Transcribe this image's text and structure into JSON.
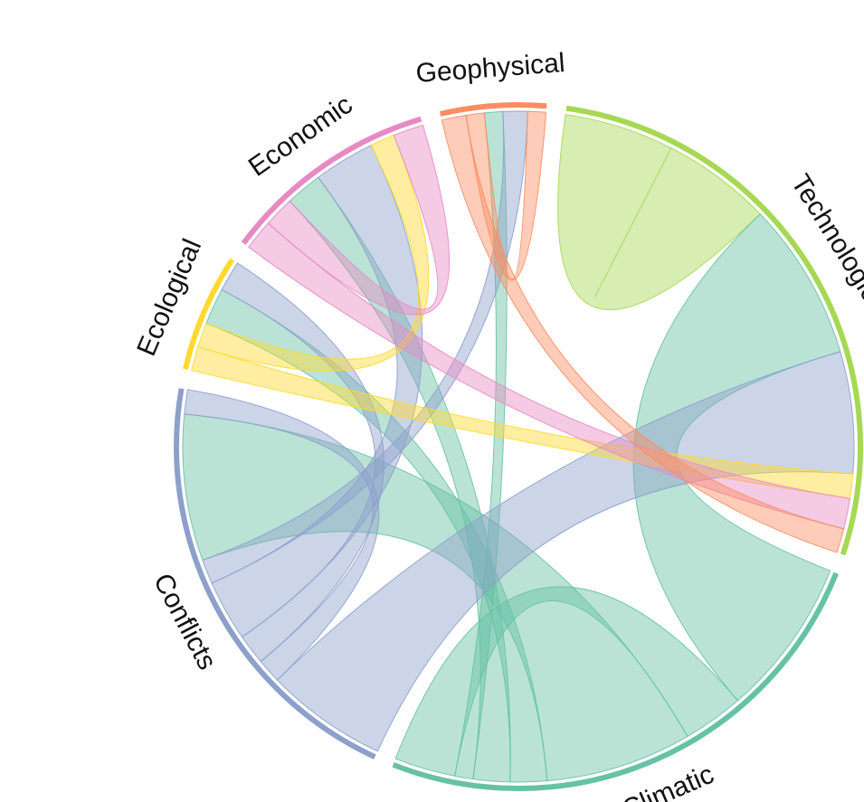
{
  "chart_data": {
    "type": "chord",
    "sectors": [
      {
        "name": "Technological",
        "color": "#a6d854"
      },
      {
        "name": "Climatic",
        "color": "#66c2a5"
      },
      {
        "name": "Conflicts",
        "color": "#8da0cb"
      },
      {
        "name": "Ecological",
        "color": "#ffd92f"
      },
      {
        "name": "Economic",
        "color": "#e78ac3"
      },
      {
        "name": "Geophysical",
        "color": "#fc8d62"
      }
    ],
    "links": [
      {
        "source": "Technological",
        "target": "Technological",
        "value": 9,
        "color": "#a6d854"
      },
      {
        "source": "Climatic",
        "target": "Technological",
        "value": 13,
        "color": "#66c2a5"
      },
      {
        "source": "Climatic",
        "target": "Climatic",
        "value": 5,
        "color": "#66c2a5"
      },
      {
        "source": "Climatic",
        "target": "Conflicts",
        "value": 12,
        "color": "#66c2a5"
      },
      {
        "source": "Climatic",
        "target": "Ecological",
        "value": 3,
        "color": "#66c2a5"
      },
      {
        "source": "Climatic",
        "target": "Economic",
        "value": 3,
        "color": "#66c2a5"
      },
      {
        "source": "Climatic",
        "target": "Geophysical",
        "value": 1.5,
        "color": "#66c2a5"
      },
      {
        "source": "Conflicts",
        "target": "Technological",
        "value": 10,
        "color": "#8da0cb"
      },
      {
        "source": "Conflicts",
        "target": "Conflicts",
        "value": 2,
        "color": "#8da0cb"
      },
      {
        "source": "Conflicts",
        "target": "Ecological",
        "value": 2.5,
        "color": "#8da0cb"
      },
      {
        "source": "Conflicts",
        "target": "Economic",
        "value": 5,
        "color": "#8da0cb"
      },
      {
        "source": "Conflicts",
        "target": "Geophysical",
        "value": 2,
        "color": "#8da0cb"
      },
      {
        "source": "Ecological",
        "target": "Technological",
        "value": 2,
        "color": "#ffd92f"
      },
      {
        "source": "Ecological",
        "target": "Economic",
        "value": 2,
        "color": "#ffd92f"
      },
      {
        "source": "Economic",
        "target": "Technological",
        "value": 2.5,
        "color": "#e78ac3"
      },
      {
        "source": "Economic",
        "target": "Economic",
        "value": 2.5,
        "color": "#e78ac3"
      },
      {
        "source": "Geophysical",
        "target": "Technological",
        "value": 2,
        "color": "#fc8d62"
      },
      {
        "source": "Geophysical",
        "target": "Geophysical",
        "value": 1.5,
        "color": "#fc8d62"
      }
    ]
  }
}
